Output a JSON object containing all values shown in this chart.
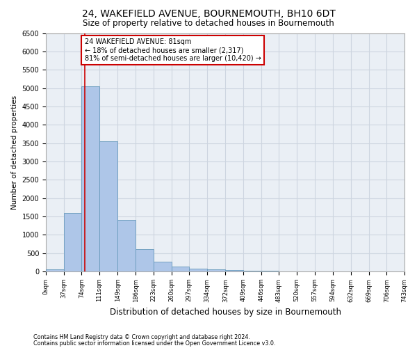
{
  "title": "24, WAKEFIELD AVENUE, BOURNEMOUTH, BH10 6DT",
  "subtitle": "Size of property relative to detached houses in Bournemouth",
  "xlabel": "Distribution of detached houses by size in Bournemouth",
  "ylabel": "Number of detached properties",
  "footnote1": "Contains HM Land Registry data © Crown copyright and database right 2024.",
  "footnote2": "Contains public sector information licensed under the Open Government Licence v3.0.",
  "bar_edges": [
    0,
    37,
    74,
    111,
    149,
    186,
    223,
    260,
    297,
    334,
    372,
    409,
    446,
    483,
    520,
    557,
    594,
    632,
    669,
    706,
    743
  ],
  "bar_heights": [
    50,
    1600,
    5050,
    3550,
    1400,
    600,
    270,
    130,
    80,
    50,
    30,
    20,
    10,
    5,
    5,
    3,
    2,
    1,
    1,
    1
  ],
  "bar_color": "#aec6e8",
  "bar_edge_color": "#6699bb",
  "property_line_x": 81,
  "property_line_color": "#cc0000",
  "annotation_text": "24 WAKEFIELD AVENUE: 81sqm\n← 18% of detached houses are smaller (2,317)\n81% of semi-detached houses are larger (10,420) →",
  "annotation_box_color": "#cc0000",
  "ylim": [
    0,
    6500
  ],
  "yticks": [
    0,
    500,
    1000,
    1500,
    2000,
    2500,
    3000,
    3500,
    4000,
    4500,
    5000,
    5500,
    6000,
    6500
  ],
  "tick_labels": [
    "0sqm",
    "37sqm",
    "74sqm",
    "111sqm",
    "149sqm",
    "186sqm",
    "223sqm",
    "260sqm",
    "297sqm",
    "334sqm",
    "372sqm",
    "409sqm",
    "446sqm",
    "483sqm",
    "520sqm",
    "557sqm",
    "594sqm",
    "632sqm",
    "669sqm",
    "706sqm",
    "743sqm"
  ],
  "grid_color": "#cdd5e0",
  "bg_color": "#eaeff5",
  "title_fontsize": 10,
  "subtitle_fontsize": 9
}
